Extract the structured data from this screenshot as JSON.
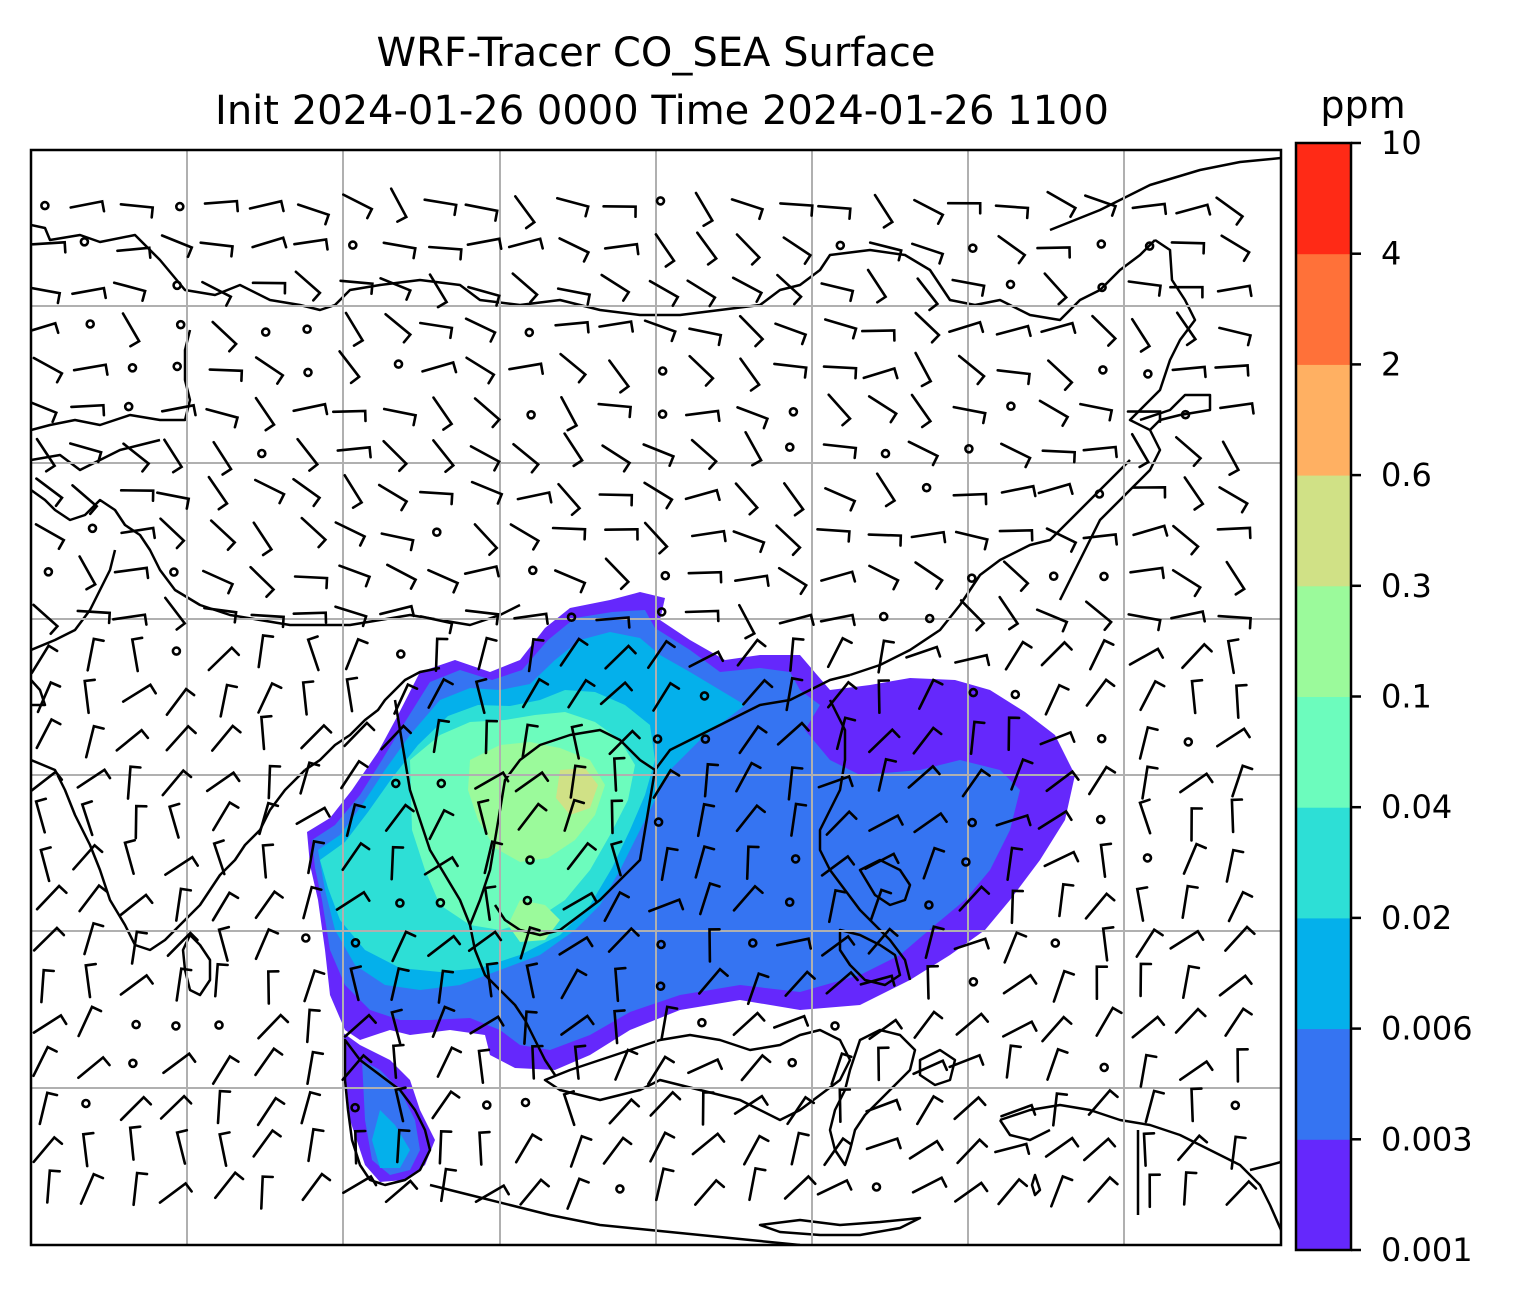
{
  "chart_data": {
    "type": "heatmap",
    "title": "WRF-Tracer CO_SEA Surface",
    "subtitle": "Init 2024-01-26 0000 Time 2024-01-26 1100",
    "colorbar": {
      "unit": "ppm",
      "ticks": [
        "0.001",
        "0.003",
        "0.006",
        "0.02",
        "0.04",
        "0.1",
        "0.3",
        "0.6",
        "2",
        "4",
        "10"
      ],
      "levels": [
        {
          "range": [
            "0.001",
            "0.003"
          ],
          "color": "#6528FC"
        },
        {
          "range": [
            "0.003",
            "0.006"
          ],
          "color": "#3574F2"
        },
        {
          "range": [
            "0.006",
            "0.02"
          ],
          "color": "#04B0EB"
        },
        {
          "range": [
            "0.02",
            "0.04"
          ],
          "color": "#2DDFD6"
        },
        {
          "range": [
            "0.04",
            "0.1"
          ],
          "color": "#6CFCBD"
        },
        {
          "range": [
            "0.1",
            "0.3"
          ],
          "color": "#9BFA9B"
        },
        {
          "range": [
            "0.3",
            "0.6"
          ],
          "color": "#D0E186"
        },
        {
          "range": [
            "0.6",
            "2"
          ],
          "color": "#FFB062"
        },
        {
          "range": [
            "2",
            "4"
          ],
          "color": "#FF7139"
        },
        {
          "range": [
            "4",
            "10"
          ],
          "color": "#FF2A16"
        }
      ]
    },
    "grid": true,
    "overlays": [
      "coastlines",
      "country borders",
      "wind barbs",
      "calm-wind circles"
    ],
    "plume": "tracer concentrated over mainland Southeast Asia (0.02–0.3 ppm), lower values (0.001–0.006 ppm) spreading east over the South China Sea and Philippines and south toward Sumatra"
  }
}
